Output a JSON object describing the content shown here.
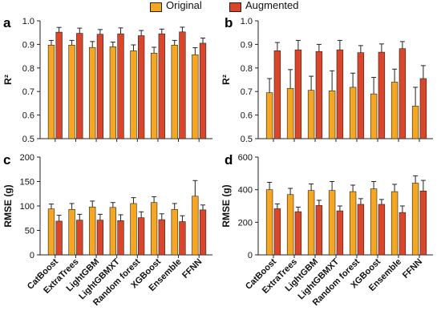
{
  "legend": {
    "original": "Original",
    "augmented": "Augmented"
  },
  "colors": {
    "original": "#F5A623",
    "augmented": "#D9462A"
  },
  "chart_data": [
    {
      "panel": "a",
      "type": "bar",
      "ylabel": "R²",
      "ylim": [
        0.5,
        1.0
      ],
      "yticks": [
        0.5,
        0.6,
        0.7,
        0.8,
        0.9,
        1.0
      ],
      "yticklabels": [
        "0.5",
        "0.6",
        "0.7",
        "0.8",
        "0.9",
        "1.0"
      ],
      "categories": [
        "CatBoost",
        "ExtraTrees",
        "LightGBM",
        "LightGBMXT",
        "Random forest",
        "XGBoost",
        "Ensemble",
        "FFNN"
      ],
      "show_categories": false,
      "series": [
        {
          "name": "Original",
          "values": [
            0.897,
            0.897,
            0.887,
            0.89,
            0.873,
            0.863,
            0.897,
            0.856
          ],
          "errors": [
            0.02,
            0.02,
            0.025,
            0.02,
            0.025,
            0.025,
            0.02,
            0.03
          ]
        },
        {
          "name": "Augmented",
          "values": [
            0.952,
            0.947,
            0.943,
            0.945,
            0.937,
            0.945,
            0.953,
            0.905
          ],
          "errors": [
            0.02,
            0.022,
            0.02,
            0.025,
            0.022,
            0.02,
            0.02,
            0.022
          ]
        }
      ]
    },
    {
      "panel": "b",
      "type": "bar",
      "ylabel": "R²",
      "ylim": [
        0.5,
        1.0
      ],
      "yticks": [
        0.5,
        0.6,
        0.7,
        0.8,
        0.9,
        1.0
      ],
      "yticklabels": [
        "0.5",
        "0.6",
        "0.7",
        "0.8",
        "0.9",
        "1.0"
      ],
      "categories": [
        "CatBoost",
        "ExtraTrees",
        "LightGBM",
        "LightGBMXT",
        "Random forest",
        "XGBoost",
        "Ensemble",
        "FFNN"
      ],
      "show_categories": false,
      "series": [
        {
          "name": "Original",
          "values": [
            0.695,
            0.713,
            0.705,
            0.703,
            0.718,
            0.69,
            0.74,
            0.638
          ],
          "errors": [
            0.06,
            0.08,
            0.06,
            0.085,
            0.06,
            0.07,
            0.055,
            0.08
          ]
        },
        {
          "name": "Augmented",
          "values": [
            0.873,
            0.877,
            0.87,
            0.877,
            0.865,
            0.867,
            0.882,
            0.755
          ],
          "errors": [
            0.035,
            0.04,
            0.03,
            0.04,
            0.03,
            0.035,
            0.03,
            0.055
          ]
        }
      ]
    },
    {
      "panel": "c",
      "type": "bar",
      "ylabel": "RMSE (g)",
      "ylim": [
        0,
        200
      ],
      "yticks": [
        0,
        50,
        100,
        150,
        200
      ],
      "yticklabels": [
        "0",
        "50",
        "100",
        "150",
        "200"
      ],
      "categories": [
        "CatBoost",
        "ExtraTrees",
        "LightGBM",
        "LightGBMXT",
        "Random forest",
        "XGBoost",
        "Ensemble",
        "FFNN"
      ],
      "show_categories": true,
      "series": [
        {
          "name": "Original",
          "values": [
            94,
            93,
            98,
            97,
            105,
            107,
            93,
            120
          ],
          "errors": [
            10,
            12,
            12,
            10,
            12,
            12,
            12,
            32
          ]
        },
        {
          "name": "Augmented",
          "values": [
            69,
            71,
            71,
            70,
            76,
            72,
            68,
            92
          ],
          "errors": [
            12,
            12,
            12,
            12,
            12,
            12,
            12,
            10
          ]
        }
      ]
    },
    {
      "panel": "d",
      "type": "bar",
      "ylabel": "RMSE (g)",
      "ylim": [
        0,
        600
      ],
      "yticks": [
        0,
        200,
        400,
        600
      ],
      "yticklabels": [
        "0",
        "200",
        "400",
        "600"
      ],
      "categories": [
        "CatBoost",
        "ExtraTrees",
        "LightGBM",
        "LightGBMXT",
        "Random forest",
        "XGBoost",
        "Ensemble",
        "FFNN"
      ],
      "show_categories": true,
      "series": [
        {
          "name": "Original",
          "values": [
            400,
            370,
            395,
            395,
            388,
            405,
            388,
            440
          ],
          "errors": [
            45,
            38,
            40,
            55,
            40,
            45,
            45,
            45
          ]
        },
        {
          "name": "Augmented",
          "values": [
            283,
            265,
            303,
            270,
            310,
            310,
            260,
            392
          ],
          "errors": [
            30,
            28,
            32,
            30,
            35,
            30,
            40,
            65
          ]
        }
      ]
    }
  ]
}
